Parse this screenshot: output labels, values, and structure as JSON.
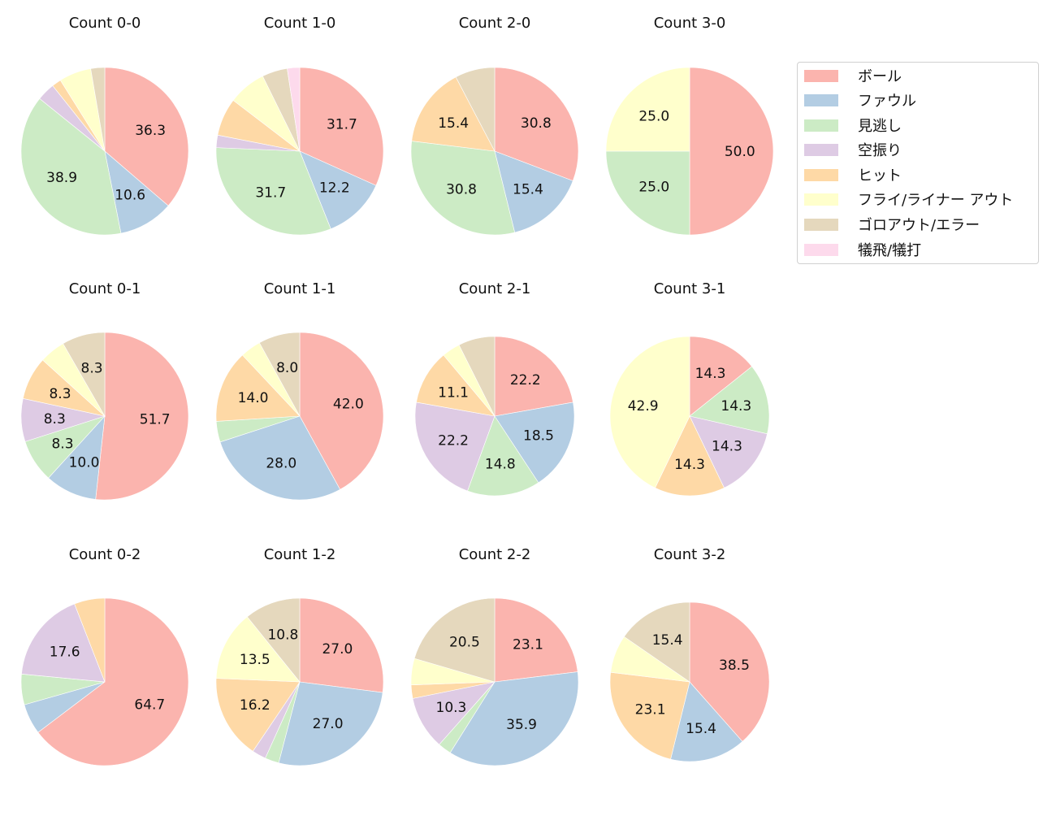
{
  "legend": {
    "items": [
      {
        "label": "ボール",
        "color": "#fbb4ae"
      },
      {
        "label": "ファウル",
        "color": "#b3cde3"
      },
      {
        "label": "見逃し",
        "color": "#ccebc5"
      },
      {
        "label": "空振り",
        "color": "#decbe4"
      },
      {
        "label": "ヒット",
        "color": "#fed9a6"
      },
      {
        "label": "フライ/ライナー アウト",
        "color": "#ffffcc"
      },
      {
        "label": "ゴロアウト/エラー",
        "color": "#e5d8bd"
      },
      {
        "label": "犠飛/犠打",
        "color": "#fddaec"
      }
    ]
  },
  "chart_data": [
    {
      "type": "pie",
      "title": "Count 0-0",
      "categories": [
        "ボール",
        "ファウル",
        "見逃し",
        "空振り",
        "ヒット",
        "フライ/ライナー アウト",
        "ゴロアウト/エラー",
        "犠飛/犠打"
      ],
      "values": [
        36.3,
        10.6,
        38.9,
        3.5,
        1.8,
        6.2,
        2.7,
        0
      ],
      "labels_shown": [
        "36.3",
        "10.6",
        "38.9"
      ]
    },
    {
      "type": "pie",
      "title": "Count 1-0",
      "categories": [
        "ボール",
        "ファウル",
        "見逃し",
        "空振り",
        "ヒット",
        "フライ/ライナー アウト",
        "ゴロアウト/エラー",
        "犠飛/犠打"
      ],
      "values": [
        31.7,
        12.2,
        31.7,
        2.4,
        7.3,
        7.3,
        4.9,
        2.4
      ],
      "labels_shown": [
        "31.7",
        "12.2",
        "31.7"
      ]
    },
    {
      "type": "pie",
      "title": "Count 2-0",
      "categories": [
        "ボール",
        "ファウル",
        "見逃し",
        "空振り",
        "ヒット",
        "フライ/ライナー アウト",
        "ゴロアウト/エラー",
        "犠飛/犠打"
      ],
      "values": [
        30.8,
        15.4,
        30.8,
        0,
        15.4,
        0,
        7.7,
        0
      ],
      "labels_shown": [
        "30.8",
        "15.4",
        "30.8",
        "15.4"
      ]
    },
    {
      "type": "pie",
      "title": "Count 3-0",
      "categories": [
        "ボール",
        "ファウル",
        "見逃し",
        "空振り",
        "ヒット",
        "フライ/ライナー アウト",
        "ゴロアウト/エラー",
        "犠飛/犠打"
      ],
      "values": [
        50.0,
        0,
        25.0,
        0,
        0,
        25.0,
        0,
        0
      ],
      "labels_shown": [
        "50.0",
        "25.0",
        "25.0"
      ]
    },
    {
      "type": "pie",
      "title": "Count 0-1",
      "categories": [
        "ボール",
        "ファウル",
        "見逃し",
        "空振り",
        "ヒット",
        "フライ/ライナー アウト",
        "ゴロアウト/エラー",
        "犠飛/犠打"
      ],
      "values": [
        51.7,
        10.0,
        8.3,
        8.3,
        8.3,
        5.0,
        8.3,
        0
      ],
      "labels_shown": [
        "51.7",
        "10.0",
        "8.3",
        "8.3",
        "8.3",
        "8.3"
      ]
    },
    {
      "type": "pie",
      "title": "Count 1-1",
      "categories": [
        "ボール",
        "ファウル",
        "見逃し",
        "空振り",
        "ヒット",
        "フライ/ライナー アウト",
        "ゴロアウト/エラー",
        "犠飛/犠打"
      ],
      "values": [
        42.0,
        28.0,
        4.0,
        0,
        14.0,
        4.0,
        8.0,
        0
      ],
      "labels_shown": [
        "42.0",
        "28.0",
        "14.0"
      ]
    },
    {
      "type": "pie",
      "title": "Count 2-1",
      "categories": [
        "ボール",
        "ファウル",
        "見逃し",
        "空振り",
        "ヒット",
        "フライ/ライナー アウト",
        "ゴロアウト/エラー",
        "犠飛/犠打"
      ],
      "values": [
        22.2,
        18.5,
        14.8,
        22.2,
        11.1,
        3.7,
        7.4,
        0
      ],
      "labels_shown": [
        "22.2",
        "18.5",
        "14.8",
        "22.2",
        "11.1"
      ]
    },
    {
      "type": "pie",
      "title": "Count 3-1",
      "categories": [
        "ボール",
        "ファウル",
        "見逃し",
        "空振り",
        "ヒット",
        "フライ/ライナー アウト",
        "ゴロアウト/エラー",
        "犠飛/犠打"
      ],
      "values": [
        14.3,
        0,
        14.3,
        14.3,
        14.3,
        42.9,
        0,
        0
      ],
      "labels_shown": [
        "14.3",
        "14.3",
        "14.3",
        "14.3",
        "42.9"
      ]
    },
    {
      "type": "pie",
      "title": "Count 0-2",
      "categories": [
        "ボール",
        "ファウル",
        "見逃し",
        "空振り",
        "ヒット",
        "フライ/ライナー アウト",
        "ゴロアウト/エラー",
        "犠飛/犠打"
      ],
      "values": [
        64.7,
        5.9,
        5.9,
        17.6,
        5.9,
        0,
        0,
        0
      ],
      "labels_shown": [
        "64.7",
        "17.6"
      ]
    },
    {
      "type": "pie",
      "title": "Count 1-2",
      "categories": [
        "ボール",
        "ファウル",
        "見逃し",
        "空振り",
        "ヒット",
        "フライ/ライナー アウト",
        "ゴロアウト/エラー",
        "犠飛/犠打"
      ],
      "values": [
        27.0,
        27.0,
        2.7,
        2.7,
        16.2,
        13.5,
        10.8,
        0
      ],
      "labels_shown": [
        "27.0",
        "27.0",
        "16.2",
        "13.5",
        "10.8"
      ]
    },
    {
      "type": "pie",
      "title": "Count 2-2",
      "categories": [
        "ボール",
        "ファウル",
        "見逃し",
        "空振り",
        "ヒット",
        "フライ/ライナー アウト",
        "ゴロアウト/エラー",
        "犠飛/犠打"
      ],
      "values": [
        23.1,
        35.9,
        2.6,
        10.3,
        2.6,
        5.1,
        20.5,
        0
      ],
      "labels_shown": [
        "23.1",
        "35.9",
        "10.3",
        "20.5"
      ]
    },
    {
      "type": "pie",
      "title": "Count 3-2",
      "categories": [
        "ボール",
        "ファウル",
        "見逃し",
        "空振り",
        "ヒット",
        "フライ/ライナー アウト",
        "ゴロアウト/エラー",
        "犠飛/犠打"
      ],
      "values": [
        38.5,
        15.4,
        0,
        0,
        23.1,
        7.7,
        15.4,
        0
      ],
      "labels_shown": [
        "38.5",
        "15.4",
        "23.1",
        "15.4"
      ]
    }
  ]
}
